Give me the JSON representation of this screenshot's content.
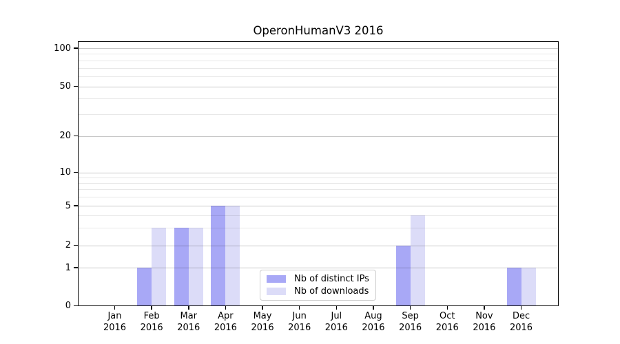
{
  "chart_data": {
    "type": "bar",
    "title": "OperonHumanV3 2016",
    "categories": [
      "Jan",
      "Feb",
      "Mar",
      "Apr",
      "May",
      "Jun",
      "Jul",
      "Aug",
      "Sep",
      "Oct",
      "Nov",
      "Dec"
    ],
    "category_year": "2016",
    "series": [
      {
        "name": "Nb of distinct IPs",
        "color": "#a8a8f6",
        "values": [
          0,
          1,
          3,
          5,
          0,
          0,
          0,
          0,
          2,
          0,
          0,
          1
        ]
      },
      {
        "name": "Nb of downloads",
        "color": "#dcdcf8",
        "values": [
          0,
          3,
          3,
          5,
          0,
          0,
          0,
          0,
          4,
          0,
          0,
          1
        ]
      }
    ],
    "yscale": "symlog",
    "ylim": [
      0,
      100
    ],
    "yticks": [
      0,
      1,
      2,
      5,
      10,
      20,
      50,
      100
    ],
    "minor_yticks": [
      3,
      4,
      6,
      7,
      8,
      9,
      30,
      40,
      60,
      70,
      80,
      90
    ],
    "grid": true,
    "grid_over_bars": true,
    "legend_position": "bottom-center",
    "colors": {
      "bar_distinct_ips": "#a8a8f6",
      "bar_downloads": "#dcdcf8",
      "major_grid": "#c7c7c7",
      "minor_grid": "#e9e9e9",
      "spine": "#000000"
    }
  }
}
